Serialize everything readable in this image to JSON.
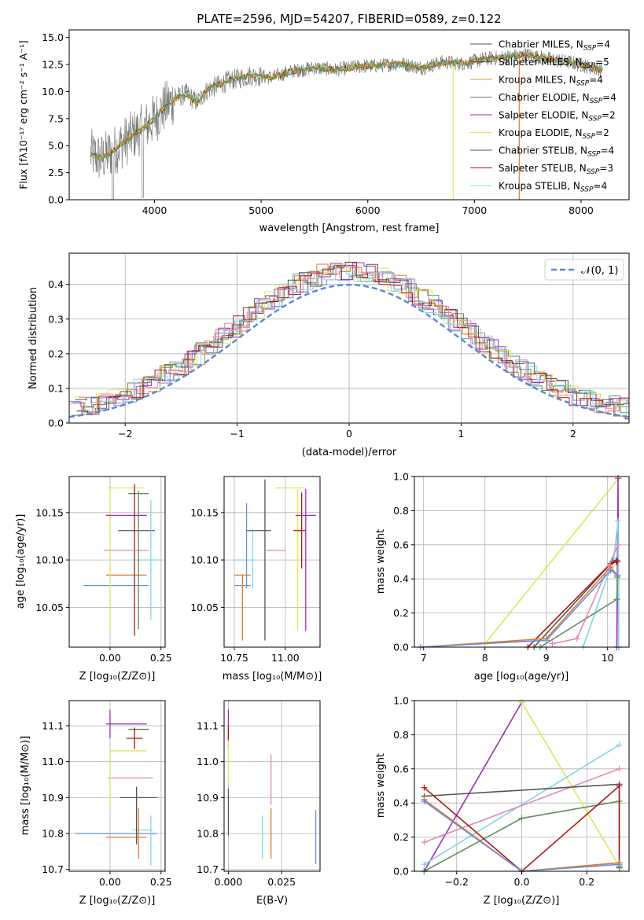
{
  "colors": {
    "chabrier_miles": "#6a8fd8",
    "salpeter_miles": "#e07a2a",
    "kroupa_miles": "#d4a017",
    "chabrier_elodie": "#5e8f5e",
    "salpeter_elodie": "#9b30b0",
    "kroupa_elodie": "#dbe85a",
    "chabrier_stelib": "#555555",
    "salpeter_stelib": "#b01818",
    "kroupa_stelib": "#80d8e0",
    "pink": "#e088b8",
    "normal_curve": "#5b8ad6"
  },
  "chart_data": [
    {
      "id": "spectrum",
      "type": "line",
      "title": "PLATE=2596, MJD=54207, FIBERID=0589, z=0.122",
      "xlabel": "wavelength [Angstrom, rest frame]",
      "ylabel": "Flux [fλ10⁻¹⁷ erg cm⁻² s⁻¹ A⁻¹]",
      "xlim": [
        3200,
        8450
      ],
      "ylim": [
        0,
        15.7
      ],
      "xticks": [
        4000,
        5000,
        6000,
        7000,
        8000
      ],
      "yticks": [
        0.0,
        2.5,
        5.0,
        7.5,
        10.0,
        12.5,
        15.0
      ],
      "grid": false,
      "legend_position": "top-right",
      "legend": [
        "Chabrier MILES, N_SSP=4",
        "Salpeter MILES, N_SSP=5",
        "Kroupa MILES, N_SSP=4",
        "Chabrier ELODIE, N_SSP=4",
        "Salpeter ELODIE, N_SSP=2",
        "Kroupa ELODIE, N_SSP=2",
        "Chabrier STELIB, N_SSP=4",
        "Salpeter STELIB, N_SSP=3",
        "Kroupa STELIB, N_SSP=4"
      ],
      "continuum": {
        "x": [
          3400,
          3500,
          3600,
          3700,
          3800,
          3900,
          4000,
          4100,
          4200,
          4300,
          4400,
          4500,
          4700,
          4900,
          5100,
          5300,
          5500,
          5700,
          5900,
          6100,
          6300,
          6500,
          6700,
          6900,
          7100,
          7300,
          7500,
          7700,
          7900,
          8100,
          8200
        ],
        "y": [
          4.2,
          3.8,
          4.4,
          5.2,
          6.0,
          6.6,
          7.5,
          8.6,
          9.4,
          9.8,
          9.0,
          10.2,
          11.0,
          11.5,
          11.3,
          11.9,
          12.2,
          12.0,
          12.3,
          12.4,
          12.6,
          12.2,
          12.7,
          12.6,
          13.0,
          13.2,
          13.4,
          13.0,
          12.7,
          12.2,
          12.0
        ]
      }
    },
    {
      "id": "residual-histogram",
      "type": "histogram",
      "xlabel": "(data-model)/error",
      "ylabel": "Normed distribution",
      "xlim": [
        -2.5,
        2.5
      ],
      "ylim": [
        0,
        0.49
      ],
      "xticks": [
        -2,
        -1,
        0,
        1,
        2
      ],
      "yticks": [
        0.0,
        0.1,
        0.2,
        0.3,
        0.4
      ],
      "grid": true,
      "legend_position": "top-right",
      "legend": [
        "𝒩(0, 1)"
      ]
    },
    {
      "id": "age-vs-Z",
      "type": "errorbar",
      "xlabel": "Z [log₁₀(Z/Z⊙)]",
      "ylabel": "age [log₁₀(age/yr)]",
      "xlim": [
        -0.2,
        0.27
      ],
      "ylim": [
        10.008,
        10.188
      ],
      "xticks": [
        0.0,
        0.25
      ],
      "xticklabels": [
        "0.00",
        "0.25"
      ],
      "yticks": [
        10.05,
        10.1,
        10.15
      ],
      "yticklabels": [
        "10.05",
        "10.10",
        "10.15"
      ],
      "grid": true,
      "points": [
        {
          "series": "chabrier_miles",
          "x": 0.03,
          "xerr": 0.16,
          "y": 10.073,
          "yerr": 0.0
        },
        {
          "series": "salpeter_miles",
          "x": 0.08,
          "xerr": 0.1,
          "y": 10.084,
          "yerr": 0.0
        },
        {
          "series": "kroupa_elodie",
          "x": 0.0,
          "xerr": 0.0,
          "y": 10.1,
          "yerr": 0.075
        },
        {
          "series": "kroupa_elodie",
          "x": 0.08,
          "xerr": 0.09,
          "y": 10.176,
          "yerr": 0.0
        },
        {
          "series": "chabrier_elodie",
          "x": 0.14,
          "xerr": 0.05,
          "y": 10.17,
          "yerr": 0.0
        },
        {
          "series": "salpeter_elodie",
          "x": 0.08,
          "xerr": 0.1,
          "y": 10.147,
          "yerr": 0.0
        },
        {
          "series": "chabrier_stelib",
          "x": 0.13,
          "xerr": 0.09,
          "y": 10.131,
          "yerr": 0.0
        },
        {
          "series": "salpeter_stelib",
          "x": 0.12,
          "xerr": 0.0,
          "y": 10.1,
          "yerr": 0.08
        },
        {
          "series": "pink",
          "x": 0.08,
          "xerr": 0.11,
          "y": 10.11,
          "yerr": 0.0
        },
        {
          "series": "kroupa_stelib",
          "x": 0.19,
          "xerr": 0.06,
          "y": 10.1,
          "yerr": 0.0
        },
        {
          "series": "kroupa_stelib",
          "x": 0.2,
          "xerr": 0.0,
          "y": 10.1,
          "yerr": 0.063
        },
        {
          "series": "chabrier_elodie",
          "x": 0.14,
          "xerr": 0.0,
          "y": 10.1,
          "yerr": 0.073
        }
      ]
    },
    {
      "id": "age-vs-mass",
      "type": "errorbar",
      "xlabel": "mass [log₁₀(M/M⊙)]",
      "ylabel": "",
      "xlim": [
        10.7,
        11.17
      ],
      "ylim": [
        10.008,
        10.188
      ],
      "xticks": [
        10.75,
        11.0
      ],
      "xticklabels": [
        "10.75",
        "11.00"
      ],
      "yticks": [
        10.05,
        10.1,
        10.15
      ],
      "yticklabels": [
        "10.05",
        "10.10",
        "10.15"
      ],
      "grid": true,
      "points": [
        {
          "series": "chabrier_miles",
          "x": 10.79,
          "xerr": 0.04,
          "y": 10.073,
          "yerr": 0.0
        },
        {
          "series": "salpeter_miles",
          "x": 10.79,
          "xerr": 0.04,
          "y": 10.084,
          "yerr": 0.0
        },
        {
          "series": "salpeter_miles",
          "x": 10.79,
          "xerr": 0.0,
          "y": 10.05,
          "yerr": 0.035
        },
        {
          "series": "kroupa_stelib",
          "x": 10.8,
          "xerr": 0.05,
          "y": 10.1,
          "yerr": 0.0
        },
        {
          "series": "chabrier_miles",
          "x": 10.81,
          "xerr": 0.0,
          "y": 10.115,
          "yerr": 0.045
        },
        {
          "series": "kroupa_stelib",
          "x": 10.84,
          "xerr": 0.0,
          "y": 10.1,
          "yerr": 0.03
        },
        {
          "series": "chabrier_stelib",
          "x": 10.87,
          "xerr": 0.06,
          "y": 10.131,
          "yerr": 0.0
        },
        {
          "series": "chabrier_stelib",
          "x": 10.9,
          "xerr": 0.0,
          "y": 10.1,
          "yerr": 0.085
        },
        {
          "series": "pink",
          "x": 10.95,
          "xerr": 0.05,
          "y": 10.11,
          "yerr": 0.0
        },
        {
          "series": "kroupa_elodie",
          "x": 11.02,
          "xerr": 0.07,
          "y": 10.176,
          "yerr": 0.0
        },
        {
          "series": "kroupa_elodie",
          "x": 11.06,
          "xerr": 0.0,
          "y": 10.1,
          "yerr": 0.075
        },
        {
          "series": "salpeter_stelib",
          "x": 11.07,
          "xerr": 0.03,
          "y": 10.131,
          "yerr": 0.0
        },
        {
          "series": "salpeter_stelib",
          "x": 11.08,
          "xerr": 0.0,
          "y": 10.131,
          "yerr": 0.04
        },
        {
          "series": "salpeter_elodie",
          "x": 11.1,
          "xerr": 0.05,
          "y": 10.147,
          "yerr": 0.0
        },
        {
          "series": "salpeter_elodie",
          "x": 11.1,
          "xerr": 0.0,
          "y": 10.1,
          "yerr": 0.075
        }
      ]
    },
    {
      "id": "massweight-vs-age",
      "type": "line",
      "xlabel": "age [log₁₀(age/yr)]",
      "ylabel": "mass weight",
      "xlim": [
        6.85,
        10.35
      ],
      "ylim": [
        0,
        1.0
      ],
      "xticks": [
        7,
        8,
        9,
        10
      ],
      "yticks": [
        0.0,
        0.2,
        0.4,
        0.6,
        0.8,
        1.0
      ],
      "grid": true,
      "series": [
        {
          "color": "kroupa_elodie",
          "x": [
            8.0,
            10.18
          ],
          "y": [
            0.02,
            0.99
          ]
        },
        {
          "color": "salpeter_elodie",
          "x": [
            10.15,
            10.17,
            10.18
          ],
          "y": [
            0.0,
            0.99,
            0.0
          ]
        },
        {
          "color": "kroupa_stelib",
          "x": [
            9.6,
            10.1,
            10.17,
            10.18
          ],
          "y": [
            0.0,
            0.52,
            0.74,
            0.0
          ]
        },
        {
          "color": "chabrier_stelib",
          "x": [
            8.8,
            10.08,
            10.15
          ],
          "y": [
            0.0,
            0.5,
            0.51
          ]
        },
        {
          "color": "chabrier_elodie",
          "x": [
            8.9,
            10.15,
            10.16
          ],
          "y": [
            0.0,
            0.28,
            0.41
          ]
        },
        {
          "color": "salpeter_stelib",
          "x": [
            8.7,
            10.05,
            10.14,
            10.16
          ],
          "y": [
            0.0,
            0.49,
            0.5,
            0.5
          ]
        },
        {
          "color": "pink",
          "x": [
            9.1,
            9.5,
            10.17
          ],
          "y": [
            0.02,
            0.05,
            0.6
          ]
        },
        {
          "color": "salpeter_miles",
          "x": [
            6.95,
            9.0,
            10.05,
            10.16
          ],
          "y": [
            0.0,
            0.05,
            0.47,
            0.42
          ]
        },
        {
          "color": "chabrier_miles",
          "x": [
            6.95,
            9.0,
            10.05,
            10.16
          ],
          "y": [
            0.0,
            0.04,
            0.45,
            0.42
          ]
        }
      ]
    },
    {
      "id": "mass-vs-Z",
      "type": "errorbar",
      "xlabel": "Z [log₁₀(Z/Z⊙)]",
      "ylabel": "mass [log₁₀(M/M⊙)]",
      "xlim": [
        -0.2,
        0.27
      ],
      "ylim": [
        10.695,
        11.17
      ],
      "xticks": [
        0.0,
        0.25
      ],
      "xticklabels": [
        "0.00",
        "0.25"
      ],
      "yticks": [
        10.7,
        10.8,
        10.9,
        11.0,
        11.1
      ],
      "yticklabels": [
        "10.7",
        "10.8",
        "10.9",
        "11.0",
        "11.1"
      ],
      "grid": true,
      "points": [
        {
          "series": "chabrier_miles",
          "x": 0.03,
          "xerr": 0.2,
          "y": 10.8,
          "yerr": 0.0
        },
        {
          "series": "salpeter_miles",
          "x": 0.08,
          "xerr": 0.1,
          "y": 10.79,
          "yerr": 0.0
        },
        {
          "series": "kroupa_stelib",
          "x": 0.16,
          "xerr": 0.05,
          "y": 10.81,
          "yerr": 0.0
        },
        {
          "series": "kroupa_stelib",
          "x": 0.2,
          "xerr": 0.0,
          "y": 10.78,
          "yerr": 0.07
        },
        {
          "series": "chabrier_stelib",
          "x": 0.13,
          "xerr": 0.0,
          "y": 10.85,
          "yerr": 0.08
        },
        {
          "series": "chabrier_stelib",
          "x": 0.14,
          "xerr": 0.09,
          "y": 10.9,
          "yerr": 0.0
        },
        {
          "series": "salpeter_miles",
          "x": 0.14,
          "xerr": 0.0,
          "y": 10.8,
          "yerr": 0.07
        },
        {
          "series": "pink",
          "x": 0.1,
          "xerr": 0.11,
          "y": 10.955,
          "yerr": 0.0
        },
        {
          "series": "kroupa_elodie",
          "x": 0.0,
          "xerr": 0.0,
          "y": 10.95,
          "yerr": 0.08
        },
        {
          "series": "kroupa_elodie",
          "x": 0.09,
          "xerr": 0.09,
          "y": 11.03,
          "yerr": 0.0
        },
        {
          "series": "salpeter_elodie",
          "x": 0.08,
          "xerr": 0.1,
          "y": 11.105,
          "yerr": 0.0
        },
        {
          "series": "salpeter_elodie",
          "x": 0.0,
          "xerr": 0.0,
          "y": 11.105,
          "yerr": 0.04
        },
        {
          "series": "chabrier_elodie",
          "x": 0.14,
          "xerr": 0.05,
          "y": 11.09,
          "yerr": 0.0
        },
        {
          "series": "salpeter_stelib",
          "x": 0.12,
          "xerr": 0.04,
          "y": 11.065,
          "yerr": 0.0
        },
        {
          "series": "salpeter_stelib",
          "x": 0.12,
          "xerr": 0.0,
          "y": 11.065,
          "yerr": 0.03
        }
      ]
    },
    {
      "id": "mass-vs-ebv",
      "type": "errorbar",
      "xlabel": "E(B-V)",
      "ylabel": "",
      "xlim": [
        -0.002,
        0.043
      ],
      "ylim": [
        10.695,
        11.17
      ],
      "xticks": [
        0.0,
        0.025
      ],
      "xticklabels": [
        "0.000",
        "0.025"
      ],
      "yticks": [
        10.7,
        10.8,
        10.9,
        11.0,
        11.1
      ],
      "yticklabels": [
        "10.7",
        "10.8",
        "10.9",
        "11.0",
        "11.1"
      ],
      "grid": true,
      "points": [
        {
          "series": "salpeter_elodie",
          "x": 0.0,
          "xerr": 0.0,
          "y": 11.1,
          "yerr": 0.045
        },
        {
          "series": "salpeter_stelib",
          "x": 0.0,
          "xerr": 0.0,
          "y": 11.07,
          "yerr": 0.03
        },
        {
          "series": "kroupa_elodie",
          "x": 0.0,
          "xerr": 0.0,
          "y": 11.0,
          "yerr": 0.06
        },
        {
          "series": "chabrier_stelib",
          "x": 0.0,
          "xerr": 0.0,
          "y": 10.86,
          "yerr": 0.065
        },
        {
          "series": "kroupa_stelib",
          "x": 0.016,
          "xerr": 0.0,
          "y": 10.79,
          "yerr": 0.06
        },
        {
          "series": "pink",
          "x": 0.02,
          "xerr": 0.0,
          "y": 10.95,
          "yerr": 0.07
        },
        {
          "series": "salpeter_miles",
          "x": 0.02,
          "xerr": 0.0,
          "y": 10.8,
          "yerr": 0.07
        },
        {
          "series": "chabrier_miles",
          "x": 0.041,
          "xerr": 0.0,
          "y": 10.79,
          "yerr": 0.075
        }
      ]
    },
    {
      "id": "massweight-vs-Z",
      "type": "line",
      "xlabel": "Z [log₁₀(Z/Z⊙)]",
      "ylabel": "mass weight",
      "xlim": [
        -0.33,
        0.33
      ],
      "ylim": [
        0,
        1.0
      ],
      "xticks": [
        -0.2,
        0.0,
        0.2
      ],
      "xticklabels": [
        "−0.2",
        "0.0",
        "0.2"
      ],
      "yticks": [
        0.0,
        0.2,
        0.4,
        0.6,
        0.8,
        1.0
      ],
      "grid": true,
      "series": [
        {
          "color": "salpeter_elodie",
          "x": [
            -0.3,
            0.0
          ],
          "y": [
            0.0,
            0.99
          ]
        },
        {
          "color": "kroupa_elodie",
          "x": [
            0.0,
            0.3
          ],
          "y": [
            0.99,
            0.03
          ]
        },
        {
          "color": "kroupa_stelib",
          "x": [
            -0.3,
            0.3
          ],
          "y": [
            0.04,
            0.74
          ]
        },
        {
          "color": "pink",
          "x": [
            -0.3,
            0.3
          ],
          "y": [
            0.17,
            0.6
          ]
        },
        {
          "color": "chabrier_stelib",
          "x": [
            -0.3,
            0.3,
            0.3
          ],
          "y": [
            0.44,
            0.51,
            0.02
          ]
        },
        {
          "color": "chabrier_elodie",
          "x": [
            -0.3,
            0.0,
            0.3,
            0.3
          ],
          "y": [
            0.0,
            0.31,
            0.41,
            0.03
          ]
        },
        {
          "color": "salpeter_stelib",
          "x": [
            -0.3,
            0.0,
            0.3,
            0.3
          ],
          "y": [
            0.49,
            0.0,
            0.5,
            0.05
          ]
        },
        {
          "color": "salpeter_miles",
          "x": [
            -0.3,
            0.0,
            0.3
          ],
          "y": [
            0.42,
            0.0,
            0.05
          ]
        },
        {
          "color": "chabrier_miles",
          "x": [
            -0.3,
            0.0,
            0.3
          ],
          "y": [
            0.41,
            0.0,
            0.04
          ]
        }
      ]
    }
  ]
}
